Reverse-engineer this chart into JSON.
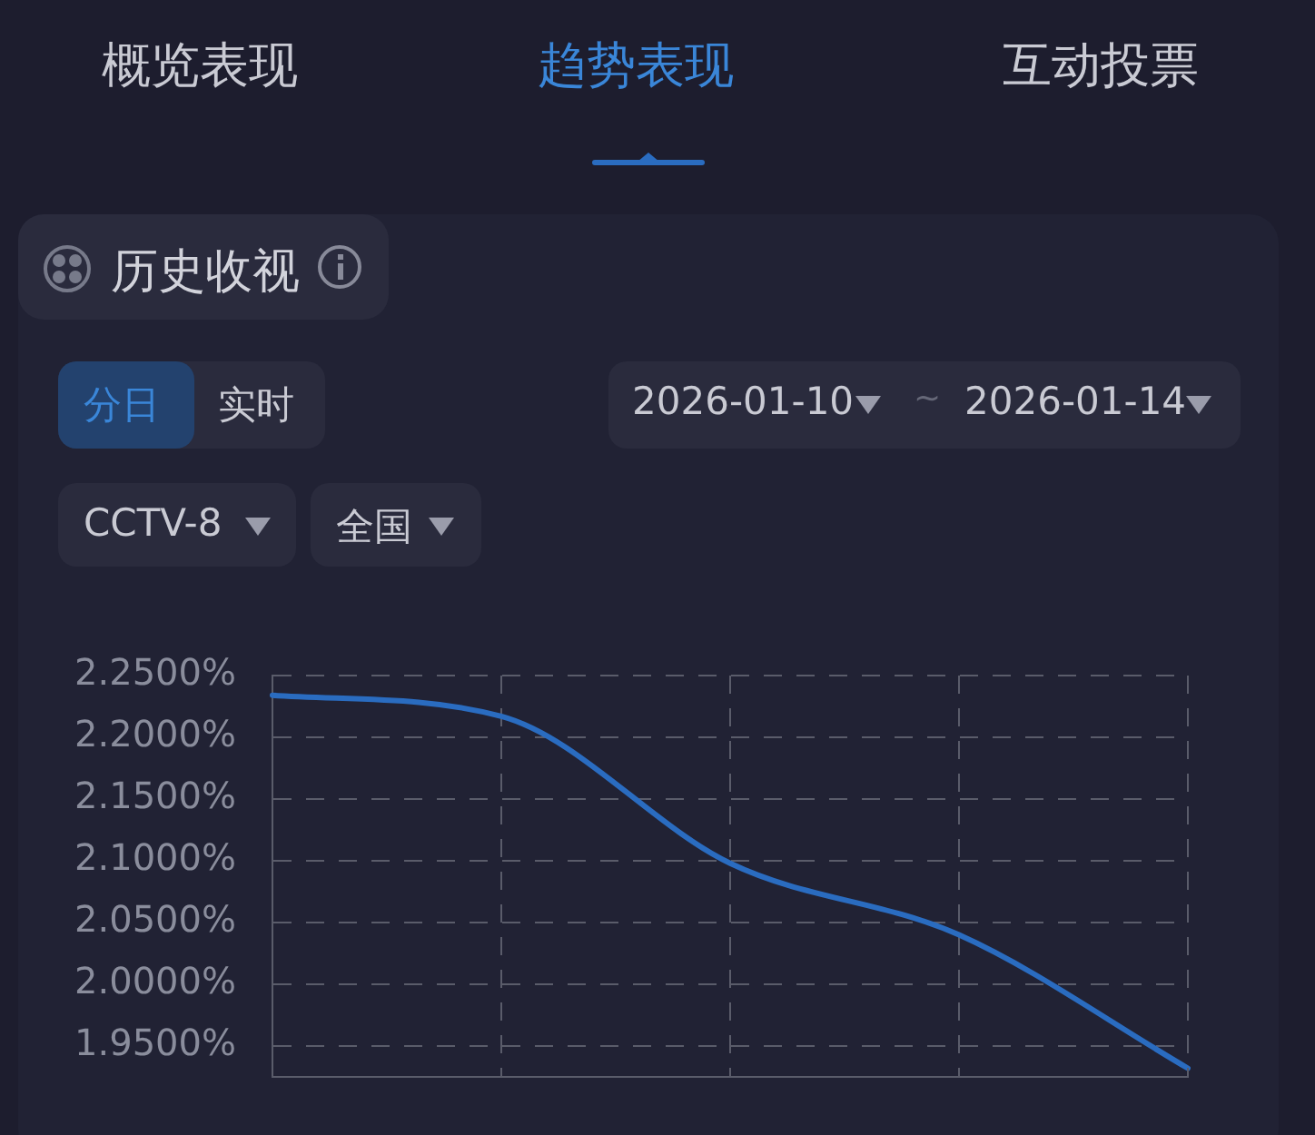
{
  "chart_data": {
    "type": "line",
    "title": "历史收视",
    "annotations": [
      "概览表现",
      "趋势表现",
      "互动投票",
      "分日",
      "实时",
      "2026-01-10",
      "~",
      "2026-01-14",
      "CCTV-8",
      "全国"
    ],
    "categories": [
      null,
      null,
      null,
      null,
      null
    ],
    "series": [
      {
        "color": "#2a6cc0",
        "values": [
          2.234,
          2.217,
          2.098,
          2.04,
          1.932
        ]
      }
    ],
    "ylim": [
      1.925,
      2.25
    ],
    "yticks": [
      {
        "value": 1.95,
        "label": "1.9500%"
      },
      {
        "value": 2.0,
        "label": "2.0000%"
      },
      {
        "value": 2.05,
        "label": "2.0500%"
      },
      {
        "value": 2.1,
        "label": "2.1000%"
      },
      {
        "value": 2.15,
        "label": "2.1500%"
      },
      {
        "value": 2.2,
        "label": "2.2000%"
      },
      {
        "value": 2.25,
        "label": "2.2500%"
      }
    ],
    "tick_labels": "y",
    "grid": true,
    "legend": false,
    "marker": "none",
    "line_style": "solid"
  }
}
